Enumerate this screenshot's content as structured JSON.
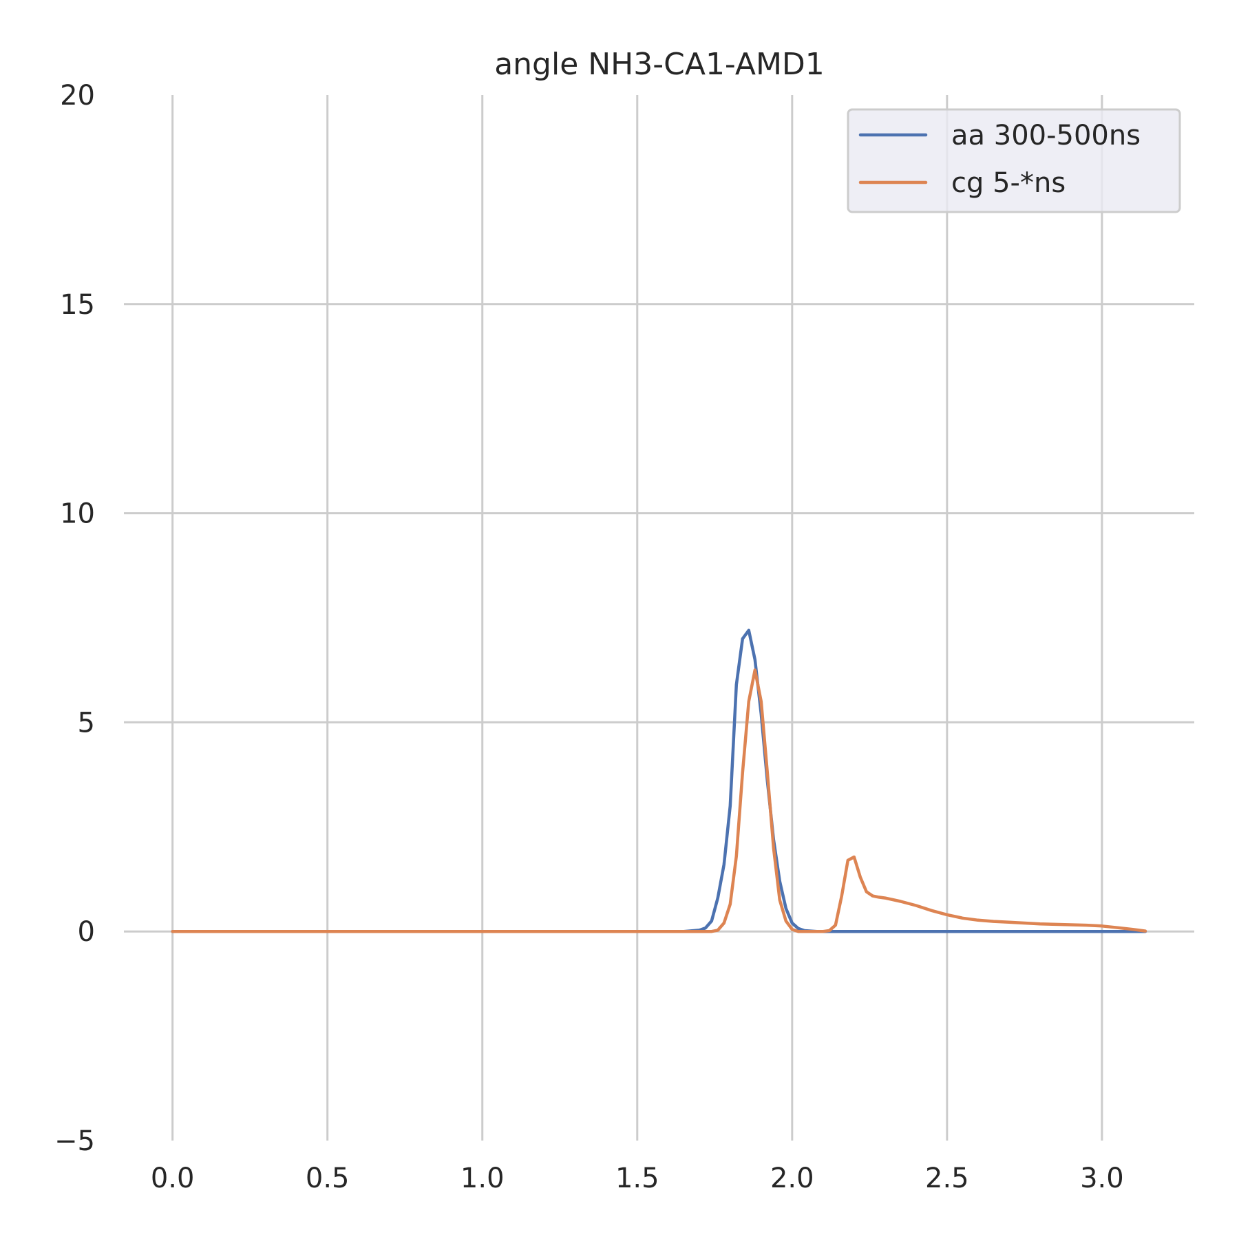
{
  "chart_data": {
    "type": "line",
    "title": "angle NH3-CA1-AMD1",
    "xlabel": "",
    "ylabel": "",
    "xlim": [
      -0.157,
      3.298
    ],
    "ylim": [
      -5,
      20
    ],
    "x_ticks": [
      0.0,
      0.5,
      1.0,
      1.5,
      2.0,
      2.5,
      3.0
    ],
    "x_tick_labels": [
      "0.0",
      "0.5",
      "1.0",
      "1.5",
      "2.0",
      "2.5",
      "3.0"
    ],
    "y_ticks": [
      -5,
      0,
      5,
      10,
      15,
      20
    ],
    "y_tick_labels": [
      "−5",
      "0",
      "5",
      "10",
      "15",
      "20"
    ],
    "grid": true,
    "legend_position": "top-right",
    "series": [
      {
        "name": "aa 300-500ns",
        "color": "#4c72b0",
        "x": [
          0.0,
          0.5,
          1.0,
          1.5,
          1.65,
          1.7,
          1.72,
          1.74,
          1.76,
          1.78,
          1.8,
          1.82,
          1.84,
          1.86,
          1.88,
          1.9,
          1.92,
          1.94,
          1.96,
          1.98,
          2.0,
          2.02,
          2.04,
          2.06,
          2.08,
          2.1,
          2.15,
          2.5,
          3.0,
          3.14
        ],
        "y": [
          0.0,
          0.0,
          0.0,
          0.0,
          0.0,
          0.03,
          0.08,
          0.25,
          0.8,
          1.6,
          3.0,
          5.9,
          7.0,
          7.2,
          6.5,
          5.2,
          3.6,
          2.2,
          1.2,
          0.55,
          0.2,
          0.07,
          0.02,
          0.01,
          0.0,
          0.0,
          0.0,
          0.0,
          0.0,
          0.0
        ],
        "x_note": ""
      },
      {
        "name": "cg 5-*ns",
        "color": "#dd8452",
        "x": [
          0.0,
          0.5,
          1.0,
          1.5,
          1.7,
          1.74,
          1.76,
          1.78,
          1.8,
          1.82,
          1.84,
          1.86,
          1.88,
          1.9,
          1.92,
          1.94,
          1.96,
          1.98,
          2.0,
          2.02,
          2.04,
          2.06,
          2.08,
          2.1,
          2.12,
          2.14,
          2.16,
          2.18,
          2.2,
          2.22,
          2.24,
          2.26,
          2.28,
          2.3,
          2.35,
          2.4,
          2.45,
          2.5,
          2.55,
          2.6,
          2.65,
          2.7,
          2.75,
          2.8,
          2.85,
          2.9,
          2.95,
          3.0,
          3.05,
          3.1,
          3.14
        ],
        "y": [
          0.0,
          0.0,
          0.0,
          0.0,
          0.0,
          0.0,
          0.03,
          0.2,
          0.65,
          1.8,
          3.8,
          5.5,
          6.25,
          5.5,
          3.8,
          2.0,
          0.75,
          0.25,
          0.05,
          0.0,
          0.0,
          0.0,
          0.0,
          0.0,
          0.02,
          0.15,
          0.85,
          1.7,
          1.78,
          1.3,
          0.95,
          0.85,
          0.82,
          0.8,
          0.72,
          0.62,
          0.5,
          0.4,
          0.32,
          0.27,
          0.24,
          0.22,
          0.2,
          0.18,
          0.17,
          0.16,
          0.15,
          0.13,
          0.09,
          0.05,
          0.01
        ]
      }
    ]
  }
}
